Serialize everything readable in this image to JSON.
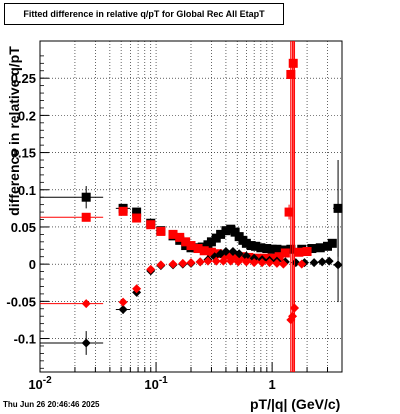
{
  "page": {
    "title": "Fitted difference in relative q/pT for Global Rec All EtapT",
    "footer": "Thu Jun 26 20:46:46 2025"
  },
  "chart_data": {
    "type": "scatter",
    "title": "Fitted difference in relative q/pT for Global Rec All EtapT",
    "xlabel": "pT/|q| (GeV/c)",
    "ylabel": "difference in relative q/pT",
    "x_scale": "log",
    "xlim": [
      0.01,
      4.0
    ],
    "ylim": [
      -0.145,
      0.3
    ],
    "x_ticks": [
      0.01,
      0.1,
      1
    ],
    "x_tick_labels": [
      "10^-2",
      "10^-1",
      "1"
    ],
    "y_ticks": [
      -0.1,
      -0.05,
      0,
      0.05,
      0.1,
      0.15,
      0.2,
      0.25
    ],
    "y_tick_labels": [
      "-0.1",
      "-0.05",
      "0",
      "0.05",
      "0.1",
      "0.15",
      "0.2",
      "0.25"
    ],
    "grid": true,
    "series": [
      {
        "color": "#000000",
        "marker": "square",
        "points": [
          {
            "x": 0.025,
            "y": 0.09,
            "xerr": [
              0.01,
              0.035
            ],
            "yerr": 0.015
          },
          {
            "x": 0.052,
            "y": 0.075,
            "xerr": [
              0.045,
              0.06
            ],
            "yerr": 0.004
          },
          {
            "x": 0.068,
            "y": 0.07,
            "xerr": [
              0.062,
              0.074
            ],
            "yerr": 0.003
          },
          {
            "x": 0.09,
            "y": 0.055,
            "xerr": null,
            "yerr": 0.002
          },
          {
            "x": 0.11,
            "y": 0.045,
            "xerr": null,
            "yerr": 0.002
          },
          {
            "x": 0.14,
            "y": 0.038,
            "xerr": null,
            "yerr": 0.002
          },
          {
            "x": 0.16,
            "y": 0.032,
            "xerr": null,
            "yerr": 0.002
          },
          {
            "x": 0.18,
            "y": 0.025,
            "xerr": null,
            "yerr": 0.002
          },
          {
            "x": 0.2,
            "y": 0.022,
            "xerr": null,
            "yerr": 0.002
          },
          {
            "x": 0.22,
            "y": 0.022,
            "xerr": null,
            "yerr": 0.002
          },
          {
            "x": 0.25,
            "y": 0.023,
            "xerr": null,
            "yerr": 0.002
          },
          {
            "x": 0.28,
            "y": 0.026,
            "xerr": null,
            "yerr": 0.002
          },
          {
            "x": 0.3,
            "y": 0.03,
            "xerr": null,
            "yerr": 0.002
          },
          {
            "x": 0.33,
            "y": 0.035,
            "xerr": null,
            "yerr": 0.002
          },
          {
            "x": 0.36,
            "y": 0.04,
            "xerr": null,
            "yerr": 0.002
          },
          {
            "x": 0.4,
            "y": 0.045,
            "xerr": null,
            "yerr": 0.002
          },
          {
            "x": 0.44,
            "y": 0.047,
            "xerr": null,
            "yerr": 0.002
          },
          {
            "x": 0.48,
            "y": 0.043,
            "xerr": null,
            "yerr": 0.002
          },
          {
            "x": 0.52,
            "y": 0.037,
            "xerr": null,
            "yerr": 0.002
          },
          {
            "x": 0.56,
            "y": 0.032,
            "xerr": null,
            "yerr": 0.002
          },
          {
            "x": 0.6,
            "y": 0.028,
            "xerr": null,
            "yerr": 0.002
          },
          {
            "x": 0.66,
            "y": 0.025,
            "xerr": null,
            "yerr": 0.002
          },
          {
            "x": 0.72,
            "y": 0.024,
            "xerr": null,
            "yerr": 0.002
          },
          {
            "x": 0.8,
            "y": 0.022,
            "xerr": null,
            "yerr": 0.002
          },
          {
            "x": 0.9,
            "y": 0.021,
            "xerr": null,
            "yerr": 0.002
          },
          {
            "x": 1.0,
            "y": 0.02,
            "xerr": null,
            "yerr": 0.002
          },
          {
            "x": 1.1,
            "y": 0.02,
            "xerr": null,
            "yerr": 0.002
          },
          {
            "x": 1.25,
            "y": 0.019,
            "xerr": null,
            "yerr": 0.002
          },
          {
            "x": 1.45,
            "y": 0.02,
            "xerr": null,
            "yerr": 0.002
          },
          {
            "x": 1.8,
            "y": 0.02,
            "xerr": null,
            "yerr": 0.002
          },
          {
            "x": 2.2,
            "y": 0.021,
            "xerr": null,
            "yerr": 0.002
          },
          {
            "x": 2.6,
            "y": 0.022,
            "xerr": null,
            "yerr": 0.002
          },
          {
            "x": 3.0,
            "y": 0.024,
            "xerr": null,
            "yerr": 0.002
          },
          {
            "x": 3.3,
            "y": 0.028,
            "xerr": null,
            "yerr": 0.002
          },
          {
            "x": 3.7,
            "y": 0.075,
            "xerr": [
              3.35,
              4.0
            ],
            "yerr": 0.065
          }
        ]
      },
      {
        "color": "#ff0000",
        "marker": "square",
        "points": [
          {
            "x": 0.025,
            "y": 0.063,
            "xerr": [
              0.01,
              0.035
            ],
            "yerr": 0.002
          },
          {
            "x": 0.052,
            "y": 0.071,
            "xerr": null,
            "yerr": 0.003
          },
          {
            "x": 0.068,
            "y": 0.062,
            "xerr": null,
            "yerr": 0.003
          },
          {
            "x": 0.09,
            "y": 0.053,
            "xerr": null,
            "yerr": 0.002
          },
          {
            "x": 0.11,
            "y": 0.044,
            "xerr": null,
            "yerr": 0.002
          },
          {
            "x": 0.14,
            "y": 0.04,
            "xerr": null,
            "yerr": 0.002
          },
          {
            "x": 0.16,
            "y": 0.036,
            "xerr": null,
            "yerr": 0.002
          },
          {
            "x": 0.18,
            "y": 0.03,
            "xerr": null,
            "yerr": 0.002
          },
          {
            "x": 0.2,
            "y": 0.025,
            "xerr": null,
            "yerr": 0.002
          },
          {
            "x": 0.23,
            "y": 0.021,
            "xerr": null,
            "yerr": 0.002
          },
          {
            "x": 0.26,
            "y": 0.018,
            "xerr": null,
            "yerr": 0.002
          },
          {
            "x": 0.3,
            "y": 0.016,
            "xerr": null,
            "yerr": 0.002
          },
          {
            "x": 0.34,
            "y": 0.014,
            "xerr": null,
            "yerr": 0.002
          },
          {
            "x": 0.4,
            "y": 0.012,
            "xerr": null,
            "yerr": 0.002
          },
          {
            "x": 0.46,
            "y": 0.011,
            "xerr": null,
            "yerr": 0.002
          },
          {
            "x": 0.54,
            "y": 0.01,
            "xerr": null,
            "yerr": 0.002
          },
          {
            "x": 0.63,
            "y": 0.009,
            "xerr": null,
            "yerr": 0.002
          },
          {
            "x": 0.74,
            "y": 0.008,
            "xerr": null,
            "yerr": 0.002
          },
          {
            "x": 0.86,
            "y": 0.008,
            "xerr": null,
            "yerr": 0.002
          },
          {
            "x": 1.0,
            "y": 0.008,
            "xerr": null,
            "yerr": 0.002
          },
          {
            "x": 1.15,
            "y": 0.01,
            "xerr": null,
            "yerr": 0.002
          },
          {
            "x": 1.3,
            "y": 0.015,
            "xerr": null,
            "yerr": 0.003
          },
          {
            "x": 1.4,
            "y": 0.07,
            "xerr": null,
            "yerr": 0.01
          },
          {
            "x": 1.45,
            "y": 0.255,
            "xerr": null,
            "yerr": 0.7
          },
          {
            "x": 1.52,
            "y": 0.27,
            "xerr": null,
            "yerr": 0.7
          },
          {
            "x": 1.7,
            "y": 0.016,
            "xerr": null,
            "yerr": 0.002
          },
          {
            "x": 2.0,
            "y": 0.017,
            "xerr": null,
            "yerr": 0.002
          }
        ]
      },
      {
        "color": "#000000",
        "marker": "diamond",
        "points": [
          {
            "x": 0.025,
            "y": -0.106,
            "xerr": [
              0.01,
              0.035
            ],
            "yerr": 0.016
          },
          {
            "x": 0.052,
            "y": -0.061,
            "xerr": [
              0.045,
              0.06
            ],
            "yerr": 0.006
          },
          {
            "x": 0.068,
            "y": -0.038,
            "xerr": null,
            "yerr": 0.003
          },
          {
            "x": 0.09,
            "y": -0.009,
            "xerr": null,
            "yerr": 0.002
          },
          {
            "x": 0.11,
            "y": -0.002,
            "xerr": null,
            "yerr": 0.002
          },
          {
            "x": 0.14,
            "y": -0.001,
            "xerr": null,
            "yerr": 0.001
          },
          {
            "x": 0.17,
            "y": 0.0,
            "xerr": null,
            "yerr": 0.001
          },
          {
            "x": 0.2,
            "y": 0.001,
            "xerr": null,
            "yerr": 0.001
          },
          {
            "x": 0.24,
            "y": 0.003,
            "xerr": null,
            "yerr": 0.001
          },
          {
            "x": 0.28,
            "y": 0.006,
            "xerr": null,
            "yerr": 0.001
          },
          {
            "x": 0.32,
            "y": 0.01,
            "xerr": null,
            "yerr": 0.001
          },
          {
            "x": 0.36,
            "y": 0.014,
            "xerr": null,
            "yerr": 0.001
          },
          {
            "x": 0.4,
            "y": 0.017,
            "xerr": null,
            "yerr": 0.001
          },
          {
            "x": 0.46,
            "y": 0.017,
            "xerr": null,
            "yerr": 0.001
          },
          {
            "x": 0.52,
            "y": 0.014,
            "xerr": null,
            "yerr": 0.001
          },
          {
            "x": 0.6,
            "y": 0.011,
            "xerr": null,
            "yerr": 0.001
          },
          {
            "x": 0.7,
            "y": 0.008,
            "xerr": null,
            "yerr": 0.001
          },
          {
            "x": 0.82,
            "y": 0.006,
            "xerr": null,
            "yerr": 0.001
          },
          {
            "x": 0.95,
            "y": 0.005,
            "xerr": null,
            "yerr": 0.001
          },
          {
            "x": 1.1,
            "y": 0.004,
            "xerr": null,
            "yerr": 0.001
          },
          {
            "x": 1.3,
            "y": 0.003,
            "xerr": null,
            "yerr": 0.001
          },
          {
            "x": 1.6,
            "y": 0.002,
            "xerr": null,
            "yerr": 0.001
          },
          {
            "x": 1.9,
            "y": 0.002,
            "xerr": null,
            "yerr": 0.001
          },
          {
            "x": 2.3,
            "y": 0.002,
            "xerr": null,
            "yerr": 0.001
          },
          {
            "x": 2.7,
            "y": 0.003,
            "xerr": null,
            "yerr": 0.001
          },
          {
            "x": 3.1,
            "y": 0.004,
            "xerr": null,
            "yerr": 0.001
          },
          {
            "x": 3.7,
            "y": -0.001,
            "xerr": [
              3.35,
              4.0
            ],
            "yerr": 0.05
          }
        ]
      },
      {
        "color": "#ff0000",
        "marker": "diamond",
        "points": [
          {
            "x": 0.025,
            "y": -0.053,
            "xerr": [
              0.01,
              0.035
            ],
            "yerr": 0.002
          },
          {
            "x": 0.052,
            "y": -0.051,
            "xerr": null,
            "yerr": 0.004
          },
          {
            "x": 0.068,
            "y": -0.033,
            "xerr": null,
            "yerr": 0.003
          },
          {
            "x": 0.09,
            "y": -0.007,
            "xerr": null,
            "yerr": 0.002
          },
          {
            "x": 0.11,
            "y": -0.001,
            "xerr": null,
            "yerr": 0.001
          },
          {
            "x": 0.14,
            "y": 0.0,
            "xerr": null,
            "yerr": 0.001
          },
          {
            "x": 0.17,
            "y": 0.001,
            "xerr": null,
            "yerr": 0.001
          },
          {
            "x": 0.2,
            "y": 0.002,
            "xerr": null,
            "yerr": 0.001
          },
          {
            "x": 0.24,
            "y": 0.003,
            "xerr": null,
            "yerr": 0.001
          },
          {
            "x": 0.28,
            "y": 0.004,
            "xerr": null,
            "yerr": 0.001
          },
          {
            "x": 0.33,
            "y": 0.004,
            "xerr": null,
            "yerr": 0.001
          },
          {
            "x": 0.38,
            "y": 0.004,
            "xerr": null,
            "yerr": 0.001
          },
          {
            "x": 0.44,
            "y": 0.004,
            "xerr": null,
            "yerr": 0.001
          },
          {
            "x": 0.51,
            "y": 0.003,
            "xerr": null,
            "yerr": 0.001
          },
          {
            "x": 0.6,
            "y": 0.003,
            "xerr": null,
            "yerr": 0.001
          },
          {
            "x": 0.7,
            "y": 0.002,
            "xerr": null,
            "yerr": 0.001
          },
          {
            "x": 0.82,
            "y": 0.002,
            "xerr": null,
            "yerr": 0.001
          },
          {
            "x": 0.95,
            "y": 0.002,
            "xerr": null,
            "yerr": 0.001
          },
          {
            "x": 1.1,
            "y": 0.001,
            "xerr": null,
            "yerr": 0.001
          },
          {
            "x": 1.25,
            "y": 0.0,
            "xerr": null,
            "yerr": 0.002
          },
          {
            "x": 1.45,
            "y": -0.075,
            "xerr": null,
            "yerr": 0.7
          },
          {
            "x": 1.5,
            "y": -0.07,
            "xerr": null,
            "yerr": 0.7
          },
          {
            "x": 1.56,
            "y": -0.059,
            "xerr": null,
            "yerr": 0.7
          },
          {
            "x": 1.8,
            "y": 0.0,
            "xerr": null,
            "yerr": 0.001
          }
        ]
      }
    ]
  }
}
